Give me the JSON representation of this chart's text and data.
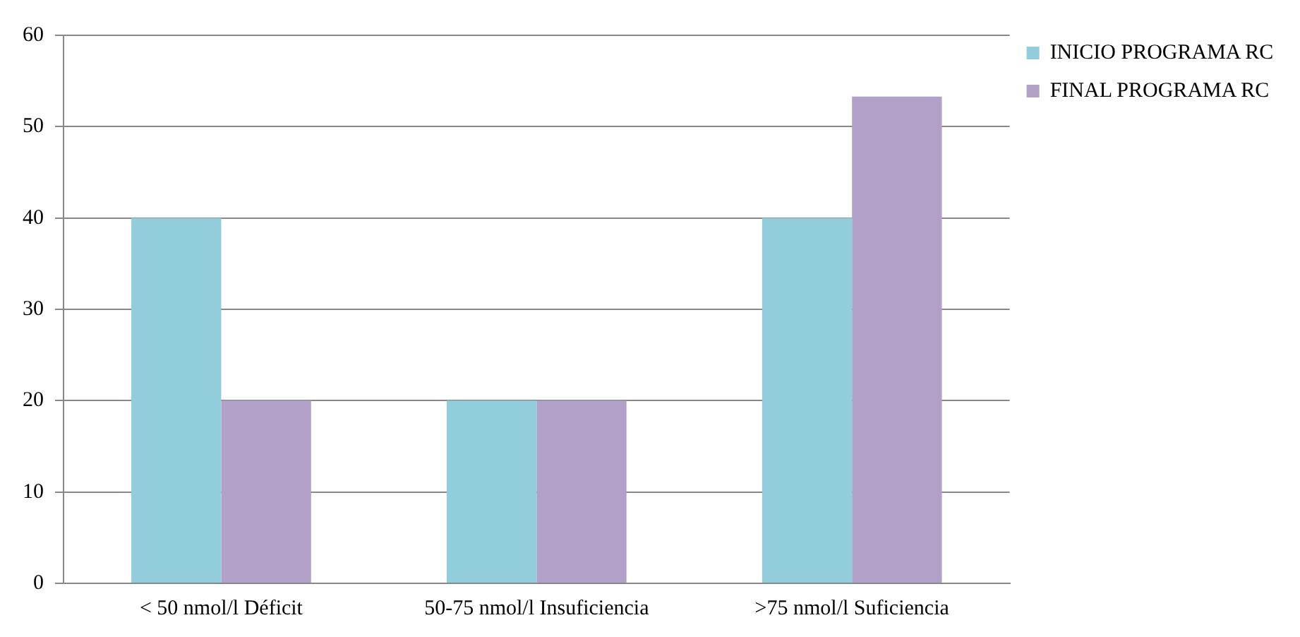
{
  "chart_data": {
    "type": "bar",
    "categories": [
      "< 50 nmol/l Déficit",
      "50-75 nmol/l Insuficiencia",
      ">75 nmol/l Suficiencia"
    ],
    "series": [
      {
        "name": "INICIO PROGRAMA RC",
        "color": "#92cddc",
        "values": [
          40,
          20,
          40
        ]
      },
      {
        "name": "FINAL PROGRAMA RC",
        "color": "#b1a0c7",
        "values": [
          20,
          20,
          53.3
        ]
      }
    ],
    "ylim": [
      0,
      60
    ],
    "yticks": [
      0,
      10,
      20,
      30,
      40,
      50,
      60
    ],
    "grid": "y",
    "legend": "top right"
  }
}
